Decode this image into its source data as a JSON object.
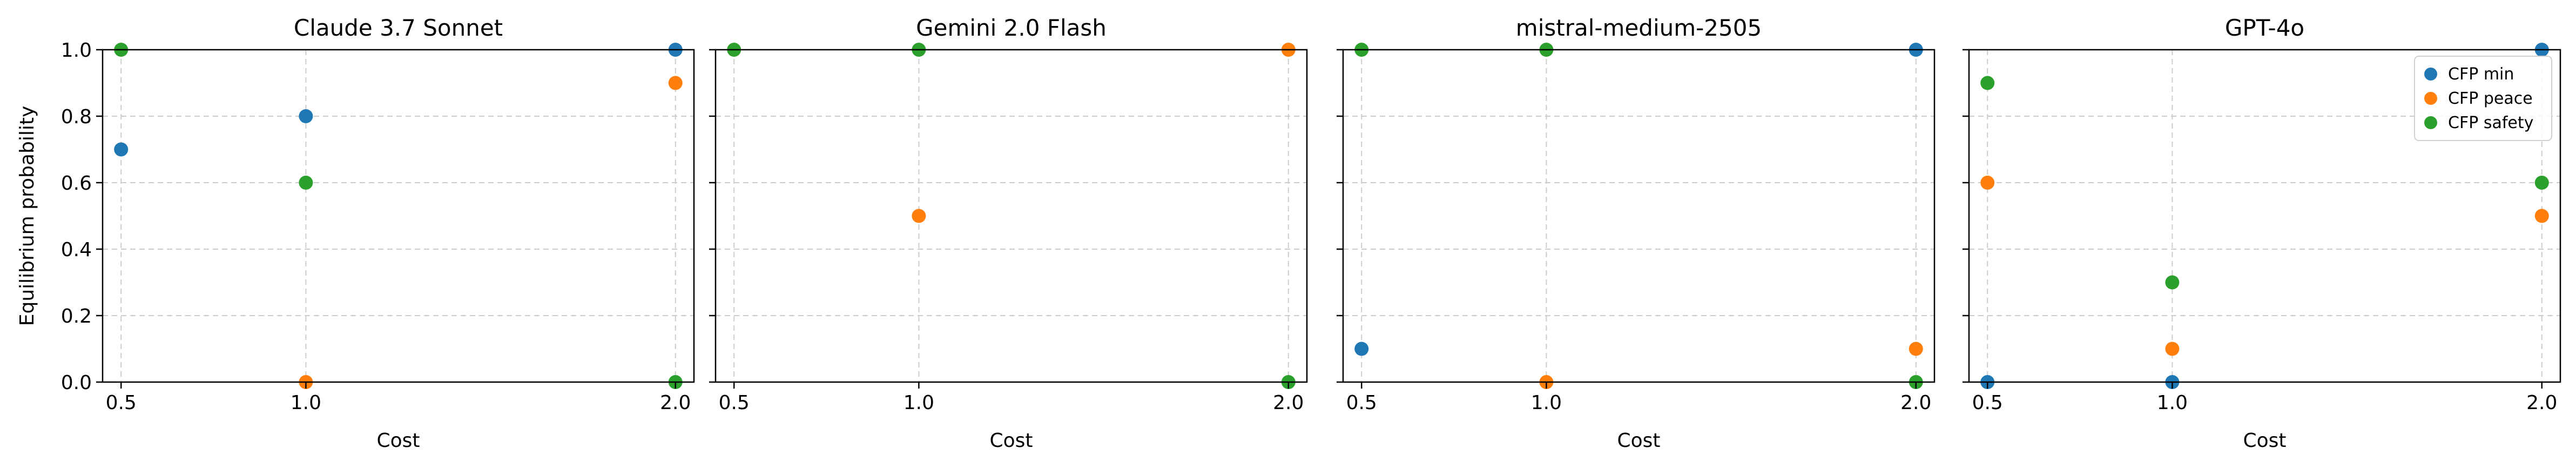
{
  "chart_data": {
    "type": "scatter",
    "shared_xlabel": "Cost",
    "shared_ylabel": "Equilibrium probability",
    "xticks": [
      "0.5",
      "1.0",
      "2.0"
    ],
    "yticks": [
      "0.0",
      "0.2",
      "0.4",
      "0.6",
      "0.8",
      "1.0"
    ],
    "xlim": [
      0.45,
      2.05
    ],
    "ylim": [
      0,
      1.0
    ],
    "grid": true,
    "legend": {
      "placement": "top-right",
      "panel": 3
    },
    "series_meta": [
      {
        "name": "CFP min",
        "color": "#1f77b4"
      },
      {
        "name": "CFP peace",
        "color": "#ff7f0e"
      },
      {
        "name": "CFP safety",
        "color": "#2ca02c"
      }
    ],
    "panels": [
      {
        "title": "Claude 3.7 Sonnet",
        "x": [
          0.5,
          1.0,
          2.0
        ],
        "series": [
          {
            "name": "CFP min",
            "values": [
              0.7,
              0.8,
              1.0
            ]
          },
          {
            "name": "CFP peace",
            "values": [
              null,
              0.0,
              0.9
            ]
          },
          {
            "name": "CFP safety",
            "values": [
              1.0,
              0.6,
              0.0
            ]
          }
        ]
      },
      {
        "title": "Gemini 2.0 Flash",
        "x": [
          0.5,
          1.0,
          2.0
        ],
        "series": [
          {
            "name": "CFP min",
            "values": [
              null,
              null,
              null
            ]
          },
          {
            "name": "CFP peace",
            "values": [
              null,
              0.5,
              1.0
            ]
          },
          {
            "name": "CFP safety",
            "values": [
              1.0,
              1.0,
              0.0
            ]
          }
        ]
      },
      {
        "title": "mistral-medium-2505",
        "x": [
          0.5,
          1.0,
          2.0
        ],
        "series": [
          {
            "name": "CFP min",
            "values": [
              0.1,
              null,
              1.0
            ]
          },
          {
            "name": "CFP peace",
            "values": [
              null,
              0.0,
              0.1
            ]
          },
          {
            "name": "CFP safety",
            "values": [
              1.0,
              1.0,
              0.0
            ]
          }
        ]
      },
      {
        "title": "GPT-4o",
        "x": [
          0.5,
          1.0,
          2.0
        ],
        "series": [
          {
            "name": "CFP min",
            "values": [
              0.0,
              0.0,
              1.0
            ]
          },
          {
            "name": "CFP peace",
            "values": [
              0.6,
              0.1,
              0.5
            ]
          },
          {
            "name": "CFP safety",
            "values": [
              0.9,
              0.3,
              0.6
            ]
          }
        ]
      }
    ]
  }
}
